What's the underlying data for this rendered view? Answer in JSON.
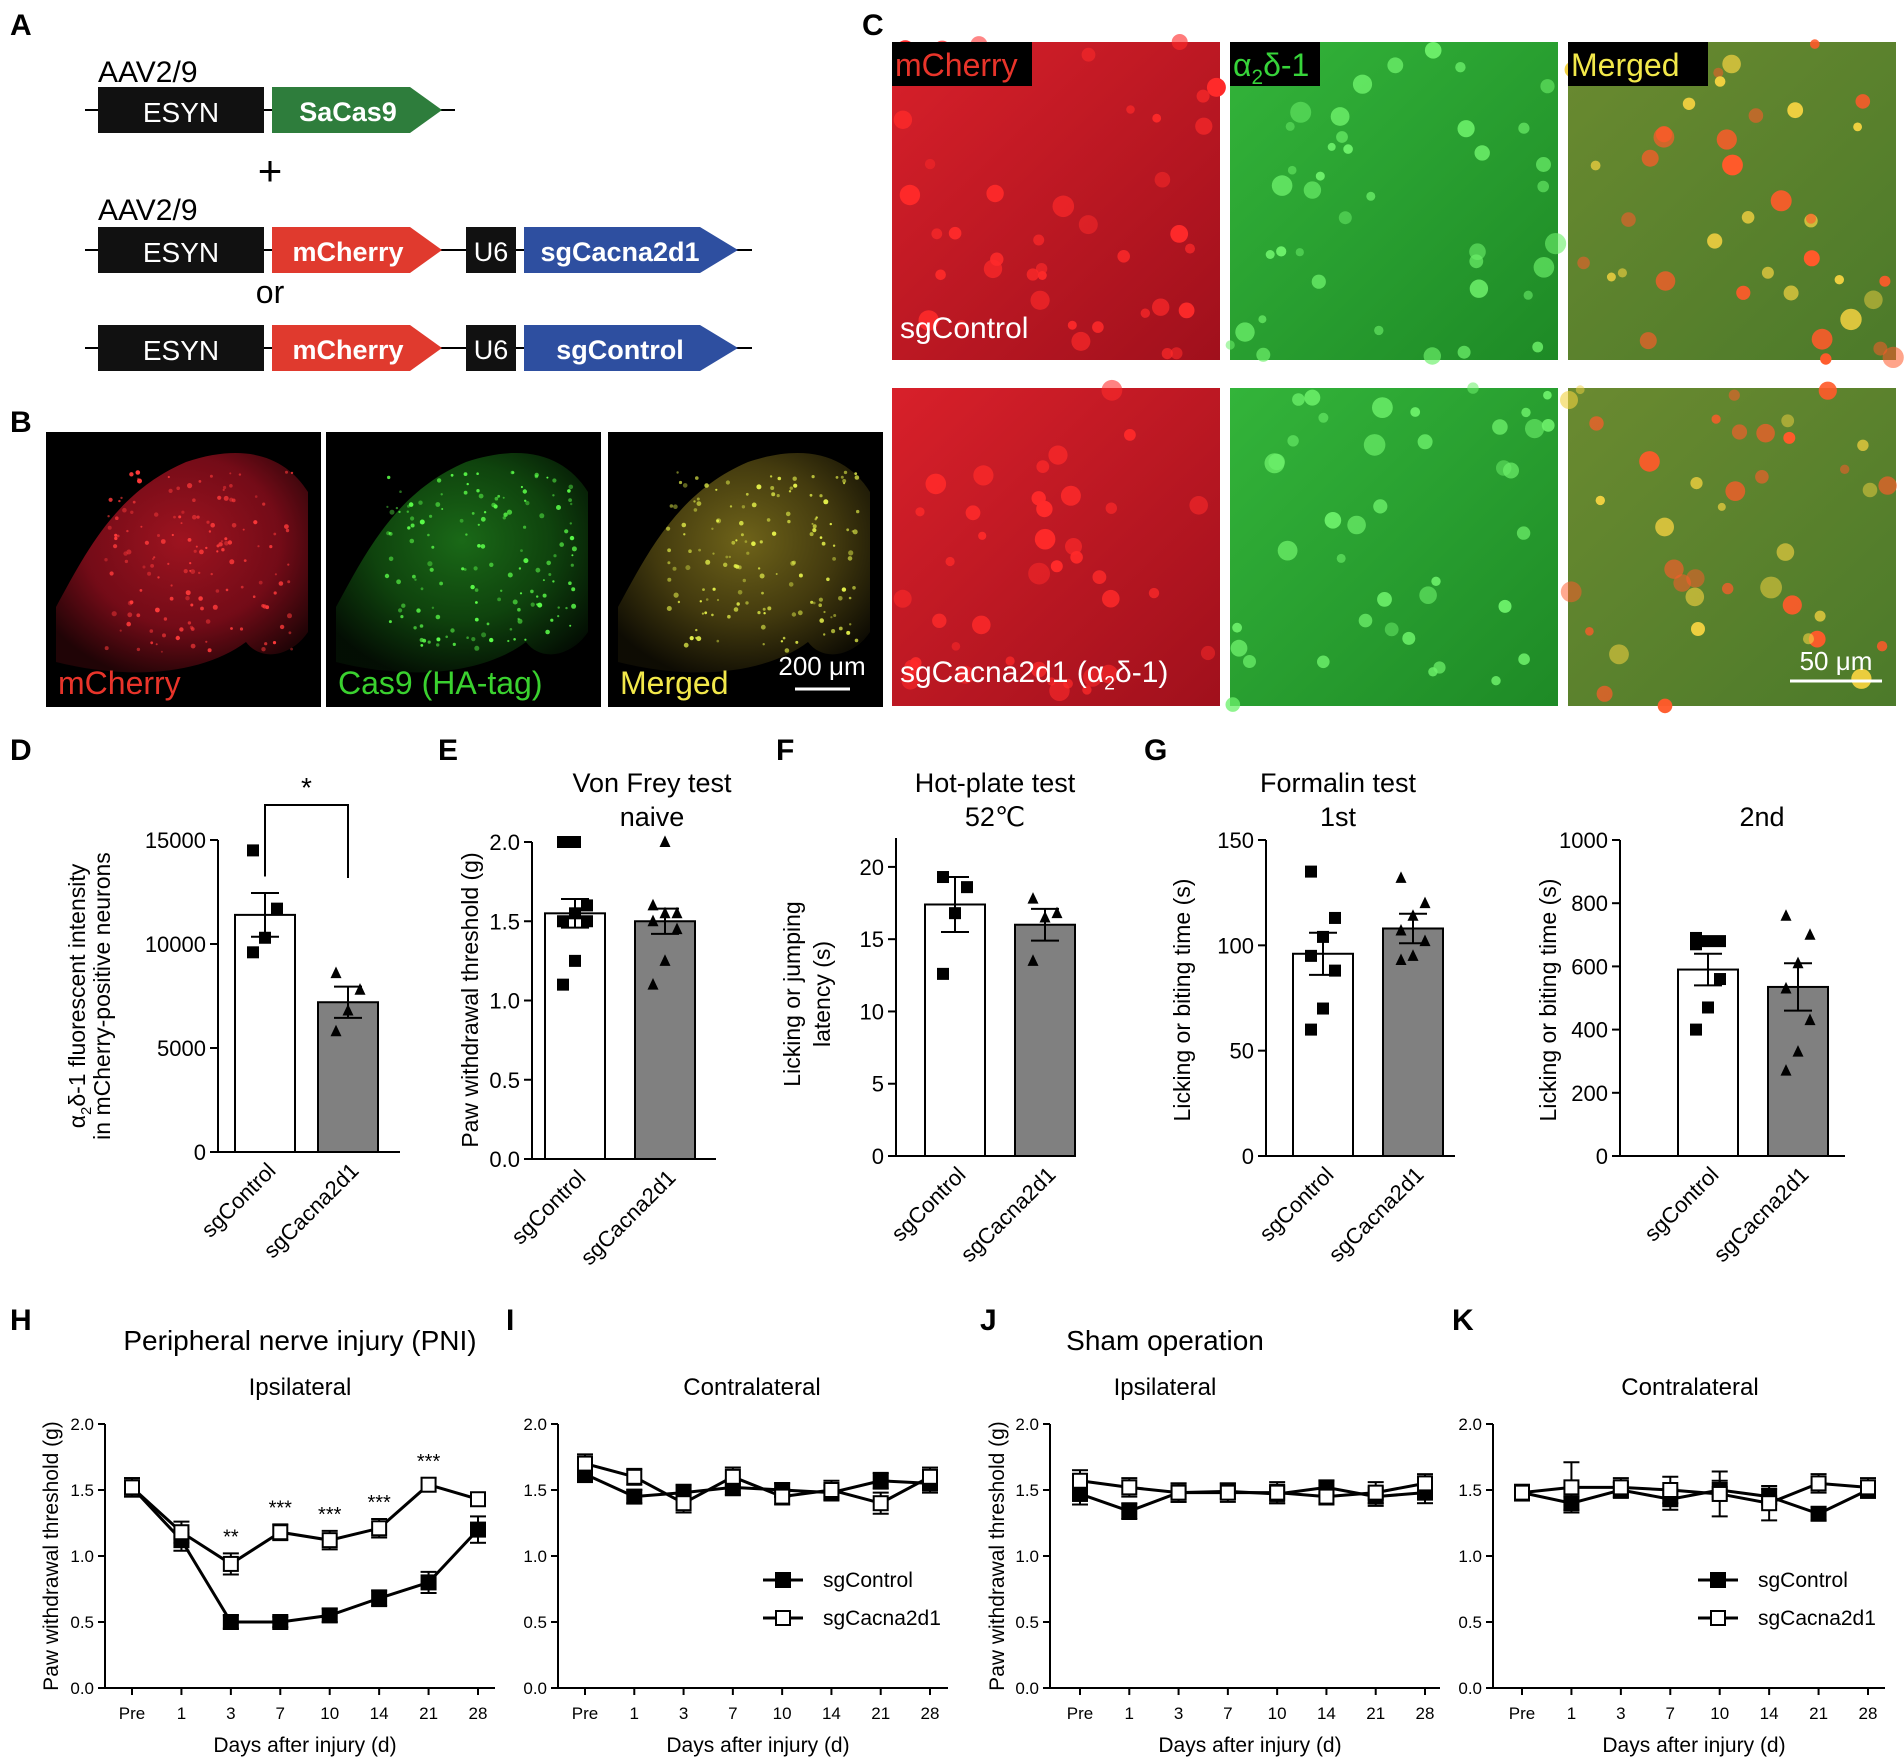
{
  "panels": {
    "A": {
      "label": "A",
      "constructs": [
        {
          "vector": "AAV2/9",
          "promoter": "ESYN",
          "gene": "SaCas9",
          "gene_color": "#2e7d3c"
        },
        {
          "vector": "AAV2/9",
          "promoter": "ESYN",
          "gene": "mCherry",
          "gene_color": "#e03a2e",
          "u6": "U6",
          "guide": "sgCacna2d1",
          "guide_color": "#2e4fa0"
        },
        {
          "vector": "",
          "promoter": "ESYN",
          "gene": "mCherry",
          "gene_color": "#e03a2e",
          "u6": "U6",
          "guide": "sgControl",
          "guide_color": "#2e4fa0"
        }
      ],
      "plus": "+",
      "or": "or"
    },
    "B": {
      "label": "B",
      "images": [
        {
          "caption": "mCherry",
          "caption_color": "#e8342a",
          "tint": "#c8102e"
        },
        {
          "caption": "Cas9 (HA-tag)",
          "caption_color": "#3ad12f",
          "tint": "#2fc22a"
        },
        {
          "caption": "Merged",
          "caption_color": "#f2e84a",
          "tint": "#b7a12a"
        }
      ],
      "scale_bar": "200 μm"
    },
    "C": {
      "label": "C",
      "headers": [
        {
          "text": "mCherry",
          "color": "#e8342a"
        },
        {
          "text": "α2δ-1",
          "color": "#37d43a"
        },
        {
          "text": "Merged",
          "color": "#f2e84a"
        }
      ],
      "row_labels": [
        "sgControl",
        "sgCacna2d1 (α2δ-1)"
      ],
      "scale_bar": "50 μm"
    }
  },
  "chart_data": [
    {
      "panel": "D",
      "type": "bar",
      "ylabel": [
        "α2δ-1 fluorescent intensity",
        "in mCherry-positive neurons"
      ],
      "ylim": [
        0,
        15000
      ],
      "yticks": [
        "0",
        "5000",
        "10000",
        "15000"
      ],
      "ytick_values": [
        0,
        5000,
        10000,
        15000
      ],
      "categories": [
        "sgControl",
        "sgCacna2d1"
      ],
      "values": [
        11400,
        7200
      ],
      "sem": [
        1050,
        750
      ],
      "points": [
        [
          9600,
          10300,
          11700,
          14500
        ],
        [
          5800,
          6800,
          7800,
          8600
        ]
      ],
      "significance": "*"
    },
    {
      "panel": "E",
      "type": "bar",
      "title": [
        "Von Frey test",
        "naive"
      ],
      "ylabel": [
        "Paw withdrawal threshold (g)"
      ],
      "ylim": [
        0,
        2.0
      ],
      "yticks": [
        "0.0",
        "0.5",
        "1.0",
        "1.5",
        "2.0"
      ],
      "ytick_values": [
        0,
        0.5,
        1.0,
        1.5,
        2.0
      ],
      "categories": [
        "sgControl",
        "sgCacna2d1"
      ],
      "values": [
        1.55,
        1.5
      ],
      "sem": [
        0.09,
        0.08
      ],
      "points": [
        [
          1.1,
          1.25,
          1.5,
          1.5,
          1.55,
          1.6,
          2.0,
          2.0
        ],
        [
          1.1,
          1.25,
          1.45,
          1.5,
          1.55,
          1.55,
          1.6,
          2.0
        ]
      ]
    },
    {
      "panel": "F",
      "type": "bar",
      "title": [
        "Hot-plate test",
        "52℃"
      ],
      "ylabel": [
        "Licking or jumping",
        "latency (s)"
      ],
      "ylim": [
        0,
        22
      ],
      "yticks": [
        "0",
        "5",
        "10",
        "15",
        "20"
      ],
      "ytick_values": [
        0,
        5,
        10,
        15,
        20
      ],
      "categories": [
        "sgControl",
        "sgCacna2d1"
      ],
      "values": [
        17.4,
        16.0
      ],
      "sem": [
        1.9,
        1.1
      ],
      "points": [
        [
          12.6,
          16.8,
          18.6,
          19.3
        ],
        [
          13.5,
          16.5,
          16.8,
          17.8
        ]
      ]
    },
    {
      "panel": "G1",
      "type": "bar",
      "title": [
        "Formalin test",
        "1st"
      ],
      "ylabel": [
        "Licking or biting time (s)"
      ],
      "ylim": [
        0,
        150
      ],
      "yticks": [
        "0",
        "50",
        "100",
        "150"
      ],
      "ytick_values": [
        0,
        50,
        100,
        150
      ],
      "categories": [
        "sgControl",
        "sgCacna2d1"
      ],
      "values": [
        96,
        108
      ],
      "sem": [
        10,
        7
      ],
      "points": [
        [
          60,
          70,
          88,
          95,
          104,
          113,
          135
        ],
        [
          93,
          95,
          102,
          107,
          114,
          120,
          132
        ]
      ]
    },
    {
      "panel": "G2",
      "type": "bar",
      "title": [
        "",
        "2nd"
      ],
      "ylabel": [
        "Licking or biting time (s)"
      ],
      "ylim": [
        0,
        1000
      ],
      "yticks": [
        "0",
        "200",
        "400",
        "600",
        "800",
        "1000"
      ],
      "ytick_values": [
        0,
        200,
        400,
        600,
        800,
        1000
      ],
      "categories": [
        "sgControl",
        "sgCacna2d1"
      ],
      "values": [
        590,
        535
      ],
      "sem": [
        50,
        75
      ],
      "points": [
        [
          400,
          470,
          560,
          670,
          680,
          680,
          690
        ],
        [
          270,
          330,
          430,
          530,
          610,
          700,
          760
        ]
      ]
    },
    {
      "panel": "H",
      "type": "line",
      "title": [
        "Peripheral nerve injury (PNI)",
        "Ipsilateral"
      ],
      "xlabel": "Days after injury (d)",
      "ylabel": "Paw withdrawal threshold (g)",
      "x": [
        "Pre",
        "1",
        "3",
        "7",
        "10",
        "14",
        "21",
        "28"
      ],
      "ylim": [
        0,
        2.0
      ],
      "yticks": [
        "0.0",
        "0.5",
        "1.0",
        "1.5",
        "2.0"
      ],
      "ytick_values": [
        0,
        0.5,
        1.0,
        1.5,
        2.0
      ],
      "series": [
        {
          "name": "sgControl",
          "values": [
            1.52,
            1.12,
            0.5,
            0.5,
            0.55,
            0.68,
            0.8,
            1.2
          ],
          "sem": [
            0.07,
            0.08,
            0.05,
            0.04,
            0.05,
            0.06,
            0.08,
            0.1
          ],
          "marker": "filled"
        },
        {
          "name": "sgCacna2d1",
          "values": [
            1.52,
            1.18,
            0.94,
            1.18,
            1.12,
            1.21,
            1.54,
            1.43
          ],
          "sem": [
            0.07,
            0.08,
            0.08,
            0.06,
            0.07,
            0.07,
            0.05,
            0.05
          ],
          "marker": "open"
        }
      ],
      "annotations": [
        {
          "x": "3",
          "text": "**"
        },
        {
          "x": "7",
          "text": "***"
        },
        {
          "x": "10",
          "text": "***"
        },
        {
          "x": "14",
          "text": "***"
        },
        {
          "x": "21",
          "text": "***"
        }
      ]
    },
    {
      "panel": "I",
      "type": "line",
      "title": [
        "",
        "Contralateral"
      ],
      "xlabel": "Days after injury (d)",
      "x": [
        "Pre",
        "1",
        "3",
        "7",
        "10",
        "14",
        "21",
        "28"
      ],
      "ylim": [
        0,
        2.0
      ],
      "yticks": [
        "0.0",
        "0.5",
        "1.0",
        "1.5",
        "2.0"
      ],
      "ytick_values": [
        0,
        0.5,
        1.0,
        1.5,
        2.0
      ],
      "series": [
        {
          "name": "sgControl",
          "values": [
            1.62,
            1.45,
            1.48,
            1.52,
            1.5,
            1.48,
            1.57,
            1.55
          ],
          "sem": [
            0.06,
            0.05,
            0.06,
            0.06,
            0.05,
            0.06,
            0.06,
            0.07
          ],
          "marker": "filled"
        },
        {
          "name": "sgCacna2d1",
          "values": [
            1.7,
            1.6,
            1.4,
            1.6,
            1.45,
            1.5,
            1.4,
            1.6
          ],
          "sem": [
            0.07,
            0.06,
            0.07,
            0.07,
            0.06,
            0.07,
            0.08,
            0.07
          ],
          "marker": "open"
        }
      ],
      "legend": "inside-bottom-right"
    },
    {
      "panel": "J",
      "type": "line",
      "title": [
        "Sham operation",
        "Ipsilateral"
      ],
      "xlabel": "Days after injury (d)",
      "ylabel": "Paw withdrawal threshold (g)",
      "x": [
        "Pre",
        "1",
        "3",
        "7",
        "10",
        "14",
        "21",
        "28"
      ],
      "ylim": [
        0,
        2.0
      ],
      "yticks": [
        "0.0",
        "0.5",
        "1.0",
        "1.5",
        "2.0"
      ],
      "ytick_values": [
        0,
        0.5,
        1.0,
        1.5,
        2.0
      ],
      "series": [
        {
          "name": "sgControl",
          "values": [
            1.47,
            1.34,
            1.48,
            1.49,
            1.47,
            1.52,
            1.45,
            1.48
          ],
          "sem": [
            0.08,
            0.06,
            0.07,
            0.06,
            0.07,
            0.05,
            0.07,
            0.08
          ],
          "marker": "filled"
        },
        {
          "name": "sgCacna2d1",
          "values": [
            1.57,
            1.52,
            1.48,
            1.48,
            1.48,
            1.45,
            1.48,
            1.55
          ],
          "sem": [
            0.08,
            0.07,
            0.07,
            0.07,
            0.08,
            0.06,
            0.08,
            0.07
          ],
          "marker": "open"
        }
      ]
    },
    {
      "panel": "K",
      "type": "line",
      "title": [
        "",
        "Contralateral"
      ],
      "xlabel": "Days after injury (d)",
      "x": [
        "Pre",
        "1",
        "3",
        "7",
        "10",
        "14",
        "21",
        "28"
      ],
      "ylim": [
        0,
        2.0
      ],
      "yticks": [
        "0.0",
        "0.5",
        "1.0",
        "1.5",
        "2.0"
      ],
      "ytick_values": [
        0,
        0.5,
        1.0,
        1.5,
        2.0
      ],
      "series": [
        {
          "name": "sgControl",
          "values": [
            1.48,
            1.4,
            1.5,
            1.43,
            1.5,
            1.45,
            1.32,
            1.5
          ],
          "sem": [
            0.05,
            0.05,
            0.06,
            0.08,
            0.07,
            0.06,
            0.05,
            0.06
          ],
          "marker": "filled"
        },
        {
          "name": "sgCacna2d1",
          "values": [
            1.48,
            1.52,
            1.52,
            1.5,
            1.47,
            1.4,
            1.55,
            1.52
          ],
          "sem": [
            0.06,
            0.19,
            0.07,
            0.1,
            0.17,
            0.13,
            0.07,
            0.07
          ],
          "marker": "open"
        }
      ],
      "legend": "inside-bottom-right"
    }
  ]
}
